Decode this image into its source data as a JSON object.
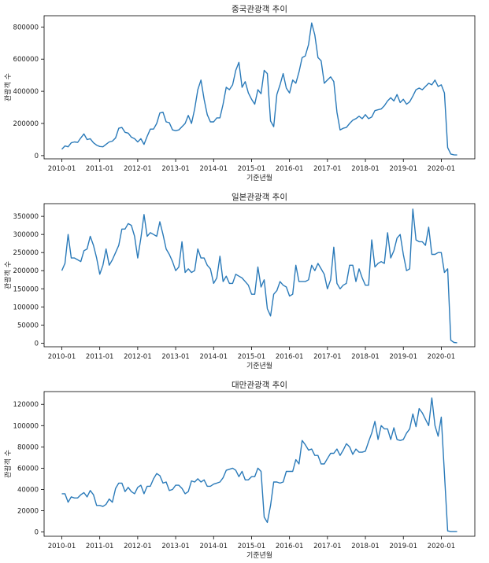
{
  "chart_data": [
    {
      "type": "line",
      "title": "중국관광객 추이",
      "xlabel": "기준년월",
      "ylabel": "관광객 수",
      "ylim": [
        -20000,
        870000
      ],
      "yticks": [
        0,
        200000,
        400000,
        600000,
        800000
      ],
      "xticks": [
        "2010-01",
        "2011-01",
        "2012-01",
        "2013-01",
        "2014-01",
        "2015-01",
        "2016-01",
        "2017-01",
        "2018-01",
        "2019-01",
        "2020-01"
      ],
      "x_start": "2010-01",
      "line_color": "#2a7ab9",
      "grid": false,
      "series": [
        {
          "values": [
            40000,
            60000,
            55000,
            80000,
            85000,
            82000,
            110000,
            135000,
            100000,
            105000,
            80000,
            65000,
            57000,
            55000,
            70000,
            85000,
            90000,
            110000,
            170000,
            175000,
            145000,
            140000,
            115000,
            105000,
            85000,
            105000,
            70000,
            120000,
            165000,
            165000,
            200000,
            265000,
            270000,
            210000,
            205000,
            160000,
            155000,
            160000,
            180000,
            200000,
            250000,
            200000,
            290000,
            410000,
            470000,
            350000,
            255000,
            210000,
            210000,
            235000,
            235000,
            320000,
            425000,
            410000,
            440000,
            530000,
            580000,
            425000,
            460000,
            390000,
            350000,
            320000,
            410000,
            385000,
            530000,
            510000,
            215000,
            180000,
            380000,
            440000,
            510000,
            420000,
            390000,
            470000,
            450000,
            520000,
            610000,
            620000,
            690000,
            825000,
            750000,
            610000,
            590000,
            450000,
            470000,
            490000,
            460000,
            270000,
            160000,
            170000,
            175000,
            200000,
            220000,
            230000,
            245000,
            230000,
            255000,
            230000,
            240000,
            280000,
            285000,
            290000,
            310000,
            340000,
            360000,
            340000,
            380000,
            330000,
            350000,
            320000,
            335000,
            370000,
            410000,
            420000,
            410000,
            430000,
            450000,
            440000,
            470000,
            430000,
            440000,
            390000,
            50000,
            10000,
            5000,
            4000
          ]
        }
      ]
    },
    {
      "type": "line",
      "title": "일본관광객 추이",
      "xlabel": "기준년월",
      "ylabel": "관광객 수",
      "ylim": [
        -10000,
        385000
      ],
      "yticks": [
        0,
        50000,
        100000,
        150000,
        200000,
        250000,
        300000,
        350000
      ],
      "xticks": [
        "2010-01",
        "2011-01",
        "2012-01",
        "2013-01",
        "2014-01",
        "2015-01",
        "2016-01",
        "2017-01",
        "2018-01",
        "2019-01",
        "2020-01"
      ],
      "x_start": "2010-01",
      "line_color": "#2a7ab9",
      "grid": false,
      "series": [
        {
          "values": [
            200000,
            220000,
            300000,
            235000,
            235000,
            230000,
            225000,
            255000,
            260000,
            295000,
            270000,
            235000,
            190000,
            215000,
            260000,
            215000,
            230000,
            250000,
            270000,
            315000,
            315000,
            330000,
            325000,
            295000,
            235000,
            290000,
            355000,
            295000,
            305000,
            300000,
            295000,
            335000,
            300000,
            260000,
            245000,
            225000,
            200000,
            210000,
            280000,
            195000,
            205000,
            195000,
            200000,
            260000,
            235000,
            235000,
            215000,
            205000,
            165000,
            180000,
            240000,
            170000,
            185000,
            165000,
            165000,
            190000,
            185000,
            180000,
            170000,
            160000,
            135000,
            135000,
            210000,
            155000,
            175000,
            95000,
            75000,
            135000,
            145000,
            170000,
            160000,
            155000,
            130000,
            135000,
            215000,
            170000,
            170000,
            170000,
            175000,
            215000,
            200000,
            220000,
            205000,
            190000,
            150000,
            175000,
            265000,
            165000,
            150000,
            160000,
            165000,
            215000,
            215000,
            170000,
            205000,
            180000,
            160000,
            160000,
            285000,
            210000,
            220000,
            225000,
            220000,
            305000,
            235000,
            255000,
            290000,
            300000,
            245000,
            200000,
            205000,
            370000,
            285000,
            280000,
            280000,
            270000,
            320000,
            245000,
            245000,
            250000,
            250000,
            195000,
            205000,
            8000,
            2000,
            1000
          ]
        }
      ]
    },
    {
      "type": "line",
      "title": "대만관광객 추이",
      "xlabel": "기준년월",
      "ylabel": "관광객 수",
      "ylim": [
        -4000,
        132000
      ],
      "yticks": [
        0,
        20000,
        40000,
        60000,
        80000,
        100000,
        120000
      ],
      "xticks": [
        "2010-01",
        "2011-01",
        "2012-01",
        "2013-01",
        "2014-01",
        "2015-01",
        "2016-01",
        "2017-01",
        "2018-01",
        "2019-01",
        "2020-01"
      ],
      "x_start": "2010-01",
      "line_color": "#2a7ab9",
      "grid": false,
      "series": [
        {
          "values": [
            36000,
            36000,
            28000,
            33000,
            32000,
            32000,
            35000,
            37000,
            33000,
            39000,
            35000,
            25000,
            25000,
            24000,
            26000,
            31000,
            28000,
            41000,
            46000,
            46000,
            38000,
            42000,
            38000,
            36000,
            42000,
            44000,
            36000,
            43000,
            43000,
            50000,
            55000,
            53000,
            46000,
            47000,
            39000,
            40000,
            44000,
            44000,
            41000,
            36000,
            38000,
            48000,
            47000,
            50000,
            47000,
            49000,
            43000,
            43000,
            45000,
            46000,
            47000,
            51000,
            58000,
            59000,
            60000,
            58000,
            52000,
            57000,
            49000,
            49000,
            52000,
            52000,
            60000,
            57000,
            14000,
            9000,
            25000,
            47000,
            47000,
            46000,
            47000,
            57000,
            57000,
            57000,
            68000,
            64000,
            86000,
            82000,
            77000,
            78000,
            72000,
            72000,
            64000,
            64000,
            69000,
            74000,
            74000,
            78000,
            72000,
            77000,
            83000,
            80000,
            73000,
            78000,
            75000,
            75000,
            76000,
            85000,
            93000,
            104000,
            87000,
            100000,
            97000,
            97000,
            87000,
            98000,
            87000,
            86000,
            87000,
            93000,
            97000,
            111000,
            99000,
            116000,
            112000,
            106000,
            100000,
            126000,
            100000,
            90000,
            108000,
            55000,
            1000,
            500,
            500,
            500
          ]
        }
      ]
    }
  ]
}
